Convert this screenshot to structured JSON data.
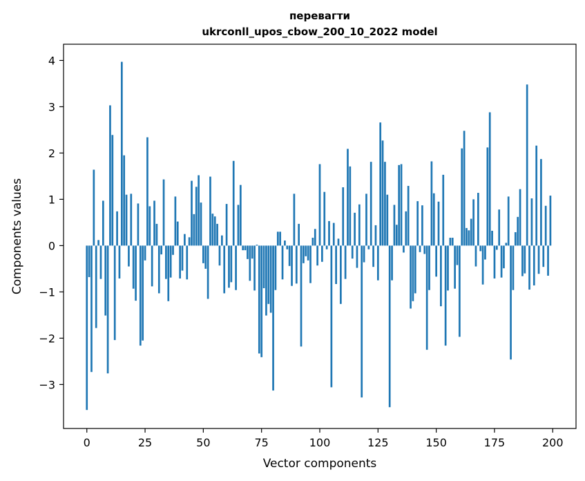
{
  "chart_data": {
    "type": "bar",
    "title_line1": "перевагти",
    "title_line2": "ukrconll_upos_cbow_200_10_2022 model",
    "xlabel": "Vector components",
    "ylabel": "Components values",
    "xlim": [
      -10,
      210
    ],
    "ylim": [
      -3.95,
      4.35
    ],
    "xticks": [
      0,
      25,
      50,
      75,
      100,
      125,
      150,
      175,
      200
    ],
    "yticks": [
      -3,
      -2,
      -1,
      0,
      1,
      2,
      3,
      4
    ],
    "bar_color": "#1f77b4",
    "grid": false,
    "values": [
      -3.55,
      -0.68,
      -2.73,
      1.64,
      -1.78,
      0.12,
      -0.72,
      0.97,
      -1.51,
      -2.76,
      3.03,
      2.39,
      -2.04,
      0.74,
      -0.71,
      3.97,
      1.95,
      1.1,
      -0.45,
      1.12,
      -0.93,
      -1.19,
      0.91,
      -2.16,
      -2.05,
      -0.32,
      2.34,
      0.85,
      -0.88,
      0.97,
      0.47,
      -1.03,
      -0.19,
      1.43,
      -0.72,
      -1.2,
      -0.69,
      -0.2,
      1.06,
      0.52,
      -0.71,
      -0.54,
      0.25,
      -0.73,
      0.18,
      1.4,
      0.68,
      1.27,
      1.52,
      0.93,
      -0.38,
      -0.5,
      -1.15,
      1.49,
      0.69,
      0.63,
      0.47,
      -0.43,
      0.22,
      -1.03,
      0.9,
      -0.91,
      -0.79,
      1.83,
      -0.96,
      0.88,
      1.31,
      -0.1,
      -0.1,
      -0.29,
      -0.76,
      -0.28,
      -0.97,
      0.02,
      -2.33,
      -2.41,
      -0.92,
      -1.51,
      -1.26,
      -1.45,
      -3.13,
      -0.96,
      0.3,
      0.3,
      -0.73,
      0.11,
      -0.08,
      -0.44,
      -0.87,
      1.12,
      -0.82,
      0.47,
      -2.18,
      -0.38,
      -0.23,
      -0.32,
      -0.81,
      0.17,
      0.36,
      -0.43,
      1.76,
      -0.35,
      1.16,
      -0.08,
      0.53,
      -3.06,
      0.49,
      -0.83,
      0.15,
      -1.26,
      1.26,
      -0.72,
      2.09,
      1.71,
      -0.28,
      0.71,
      -0.48,
      0.89,
      -3.28,
      -0.36,
      1.12,
      -0.08,
      1.81,
      -0.46,
      0.44,
      -0.75,
      2.66,
      2.27,
      1.81,
      1.1,
      -3.49,
      -0.75,
      0.88,
      0.45,
      1.74,
      1.76,
      -0.15,
      0.74,
      1.29,
      -1.36,
      -1.2,
      -1.03,
      0.96,
      -0.14,
      0.87,
      -0.18,
      -2.25,
      -0.96,
      1.82,
      1.13,
      -0.67,
      0.95,
      -1.31,
      1.53,
      -2.16,
      -0.97,
      0.17,
      0.17,
      -0.93,
      -0.42,
      -1.97,
      2.1,
      2.48,
      0.38,
      0.33,
      0.58,
      1.0,
      -0.45,
      1.14,
      -0.12,
      -0.84,
      -0.3,
      2.12,
      2.88,
      0.32,
      -0.71,
      -0.09,
      0.78,
      -0.69,
      -0.49,
      0.06,
      1.06,
      -2.46,
      -0.96,
      0.29,
      0.62,
      1.22,
      -0.66,
      -0.6,
      3.48,
      -0.95,
      1.02,
      -0.86,
      2.16,
      -0.61,
      1.87,
      -0.46,
      0.86,
      -0.65,
      1.08
    ]
  }
}
